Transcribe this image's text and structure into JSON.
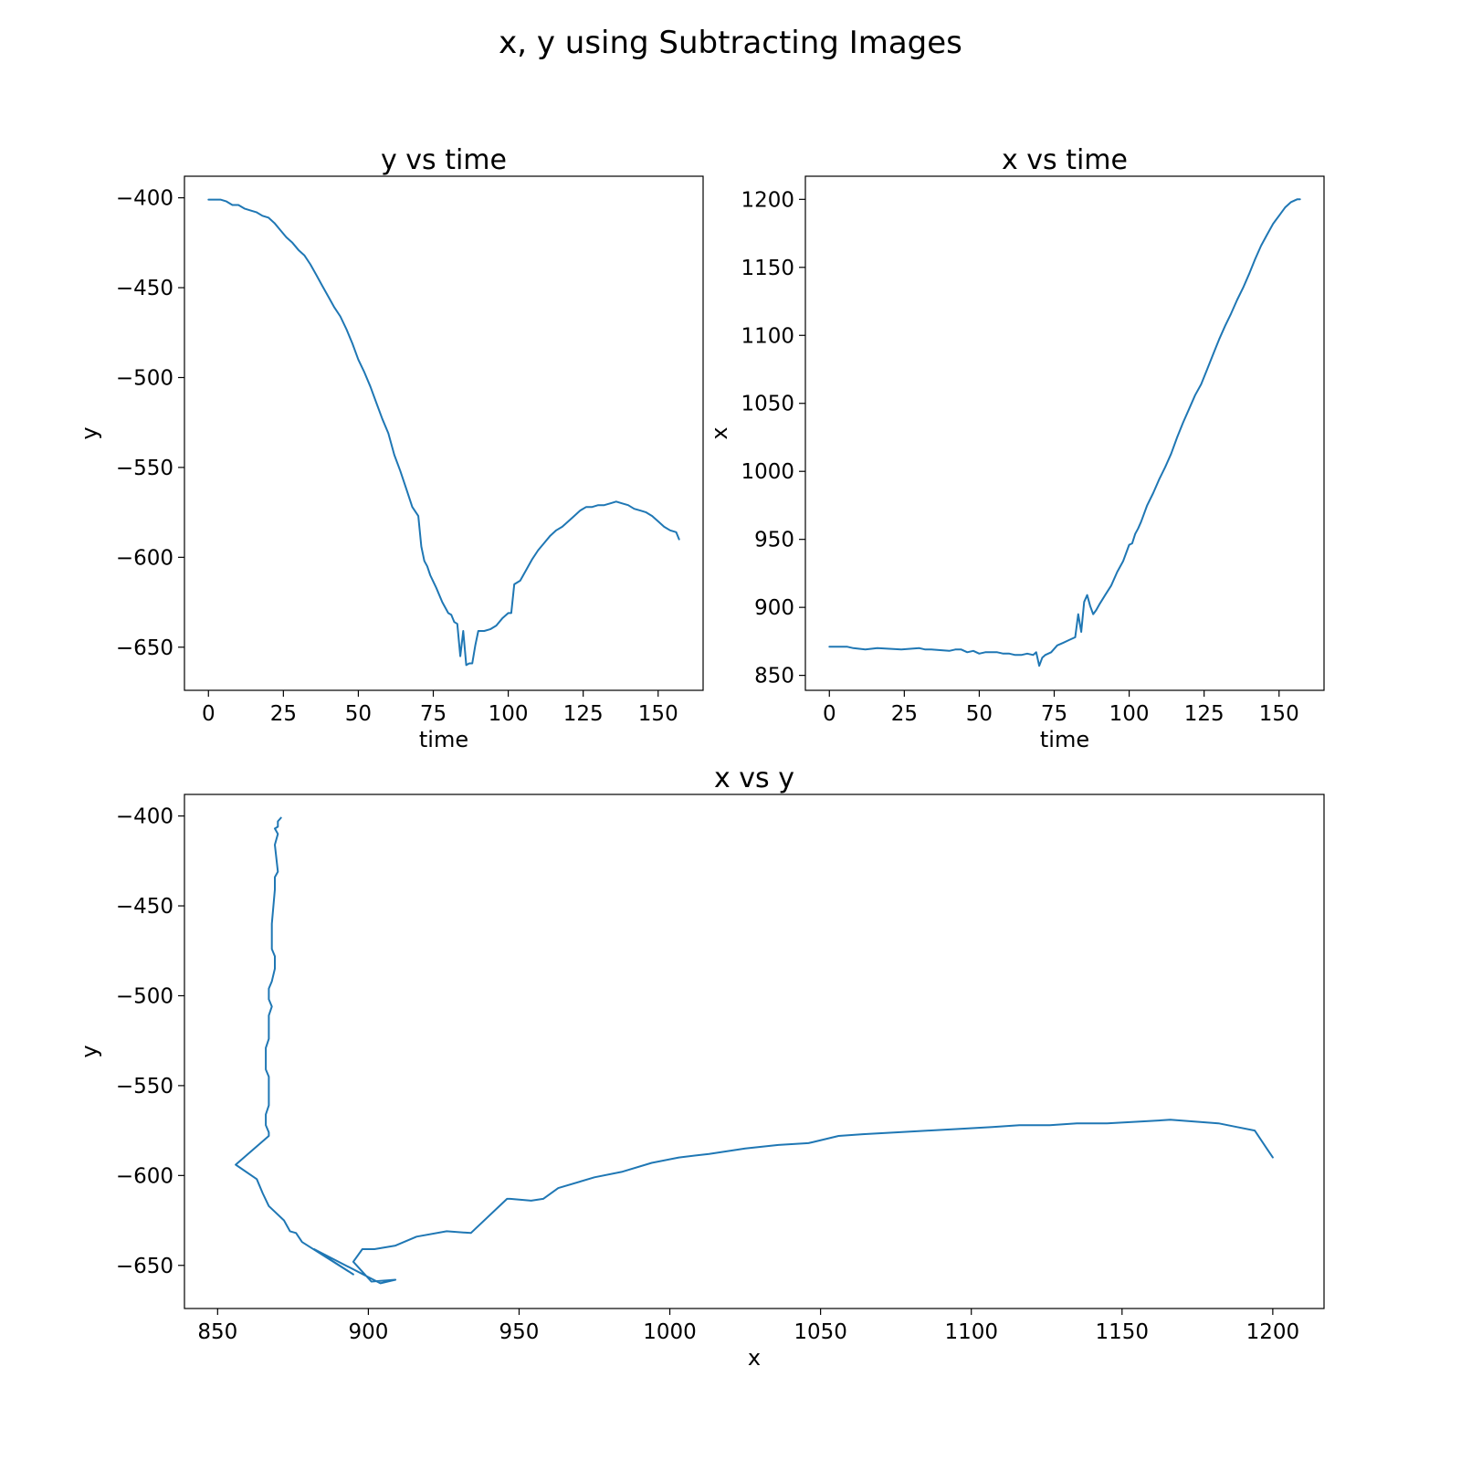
{
  "figure": {
    "title": "x, y using Subtracting Images",
    "line_color": "#1f77b4"
  },
  "chart_data": [
    {
      "id": "y-vs-time",
      "type": "line",
      "title": "y vs time",
      "xlabel": "time",
      "ylabel": "y",
      "xlim": [
        -8,
        165
      ],
      "ylim": [
        -674,
        -388
      ],
      "xticks": [
        0,
        25,
        50,
        75,
        100,
        125,
        150
      ],
      "yticks": [
        -400,
        -450,
        -500,
        -550,
        -600,
        -650
      ],
      "grid": false,
      "series": [
        {
          "x": [
            0,
            2,
            4,
            6,
            8,
            10,
            12,
            14,
            16,
            18,
            20,
            22,
            24,
            26,
            28,
            30,
            32,
            34,
            36,
            38,
            40,
            42,
            44,
            46,
            48,
            50,
            52,
            54,
            56,
            58,
            60,
            62,
            64,
            66,
            68,
            70,
            71,
            72,
            73,
            74,
            76,
            78,
            80,
            81,
            82,
            83,
            84,
            85,
            86,
            87,
            88,
            89,
            90,
            92,
            94,
            96,
            98,
            100,
            101,
            102,
            104,
            106,
            108,
            110,
            112,
            114,
            116,
            118,
            120,
            122,
            124,
            126,
            128,
            130,
            132,
            134,
            136,
            138,
            140,
            142,
            144,
            146,
            148,
            150,
            152,
            154,
            156,
            157
          ],
          "y": [
            -401,
            -401,
            -401,
            -402,
            -404,
            -404,
            -406,
            -407,
            -408,
            -410,
            -411,
            -414,
            -418,
            -422,
            -425,
            -429,
            -432,
            -437,
            -443,
            -449,
            -455,
            -461,
            -466,
            -473,
            -481,
            -490,
            -497,
            -505,
            -514,
            -523,
            -531,
            -543,
            -552,
            -562,
            -572,
            -577,
            -594,
            -602,
            -605,
            -610,
            -617,
            -625,
            -631,
            -632,
            -636,
            -637,
            -655,
            -641,
            -660,
            -659,
            -659,
            -649,
            -641,
            -641,
            -640,
            -638,
            -634,
            -631,
            -631,
            -615,
            -613,
            -607,
            -601,
            -596,
            -592,
            -588,
            -585,
            -583,
            -580,
            -577,
            -574,
            -572,
            -572,
            -571,
            -571,
            -570,
            -569,
            -570,
            -571,
            -573,
            -574,
            -575,
            -577,
            -580,
            -583,
            -585,
            -586,
            -590
          ]
        }
      ]
    },
    {
      "id": "x-vs-time",
      "type": "line",
      "title": "x vs time",
      "xlabel": "time",
      "ylabel": "x",
      "xlim": [
        -8,
        165
      ],
      "ylim": [
        839,
        1217
      ],
      "xticks": [
        0,
        25,
        50,
        75,
        100,
        125,
        150
      ],
      "yticks": [
        850,
        900,
        950,
        1000,
        1050,
        1100,
        1150,
        1200
      ],
      "grid": false,
      "series": [
        {
          "x": [
            0,
            6,
            8,
            12,
            16,
            24,
            30,
            32,
            34,
            40,
            42,
            44,
            46,
            48,
            50,
            52,
            54,
            56,
            58,
            60,
            62,
            64,
            66,
            68,
            69,
            70,
            71,
            72,
            74,
            76,
            78,
            80,
            82,
            83,
            84,
            85,
            86,
            87,
            88,
            89,
            90,
            92,
            94,
            96,
            98,
            100,
            101,
            102,
            103,
            104,
            106,
            108,
            110,
            112,
            114,
            116,
            118,
            120,
            122,
            124,
            126,
            128,
            130,
            132,
            134,
            136,
            138,
            140,
            142,
            144,
            146,
            148,
            150,
            152,
            154,
            156,
            157
          ],
          "y": [
            871,
            871,
            870,
            869,
            870,
            869,
            870,
            869,
            869,
            868,
            869,
            869,
            867,
            868,
            866,
            867,
            867,
            867,
            866,
            866,
            865,
            865,
            866,
            865,
            867,
            857,
            863,
            865,
            867,
            872,
            874,
            876,
            878,
            895,
            882,
            904,
            909,
            901,
            895,
            898,
            902,
            909,
            916,
            926,
            934,
            946,
            947,
            954,
            958,
            963,
            975,
            984,
            994,
            1003,
            1013,
            1025,
            1036,
            1046,
            1056,
            1064,
            1075,
            1086,
            1097,
            1107,
            1116,
            1126,
            1135,
            1145,
            1156,
            1166,
            1174,
            1182,
            1188,
            1194,
            1198,
            1200,
            1200
          ]
        }
      ]
    },
    {
      "id": "x-vs-y",
      "type": "line",
      "title": "x vs y",
      "xlabel": "x",
      "ylabel": "y",
      "xlim": [
        839,
        1217
      ],
      "ylim": [
        -674,
        -388
      ],
      "xticks": [
        850,
        900,
        950,
        1000,
        1050,
        1100,
        1150,
        1200
      ],
      "yticks": [
        -400,
        -450,
        -500,
        -550,
        -600,
        -650
      ],
      "grid": false,
      "series": [
        {
          "x": [
            871,
            870,
            870,
            869,
            870,
            869,
            870,
            869,
            869,
            868,
            868,
            869,
            869,
            868,
            867,
            867,
            868,
            867,
            867,
            866,
            866,
            867,
            867,
            866,
            866,
            867,
            867,
            856,
            863,
            865,
            867,
            872,
            874,
            876,
            878,
            895,
            882,
            904,
            909,
            901,
            895,
            898,
            902,
            909,
            916,
            926,
            934,
            946,
            947,
            954,
            958,
            963,
            975,
            984,
            994,
            1003,
            1013,
            1025,
            1036,
            1046,
            1056,
            1064,
            1075,
            1086,
            1097,
            1107,
            1116,
            1126,
            1135,
            1145,
            1156,
            1166,
            1174,
            1182,
            1188,
            1194,
            1198,
            1200
          ],
          "y": [
            -401,
            -403,
            -406,
            -407,
            -410,
            -416,
            -431,
            -434,
            -441,
            -460,
            -474,
            -478,
            -485,
            -492,
            -496,
            -502,
            -506,
            -511,
            -524,
            -529,
            -541,
            -545,
            -561,
            -566,
            -572,
            -576,
            -578,
            -594,
            -602,
            -610,
            -617,
            -625,
            -631,
            -632,
            -637,
            -655,
            -641,
            -660,
            -658,
            -659,
            -648,
            -641,
            -641,
            -639,
            -634,
            -631,
            -632,
            -613,
            -613,
            -614,
            -613,
            -607,
            -601,
            -598,
            -593,
            -590,
            -588,
            -585,
            -583,
            -582,
            -578,
            -577,
            -576,
            -575,
            -574,
            -573,
            -572,
            -572,
            -571,
            -571,
            -570,
            -569,
            -570,
            -571,
            -573,
            -575,
            -585,
            -590
          ]
        }
      ]
    }
  ]
}
